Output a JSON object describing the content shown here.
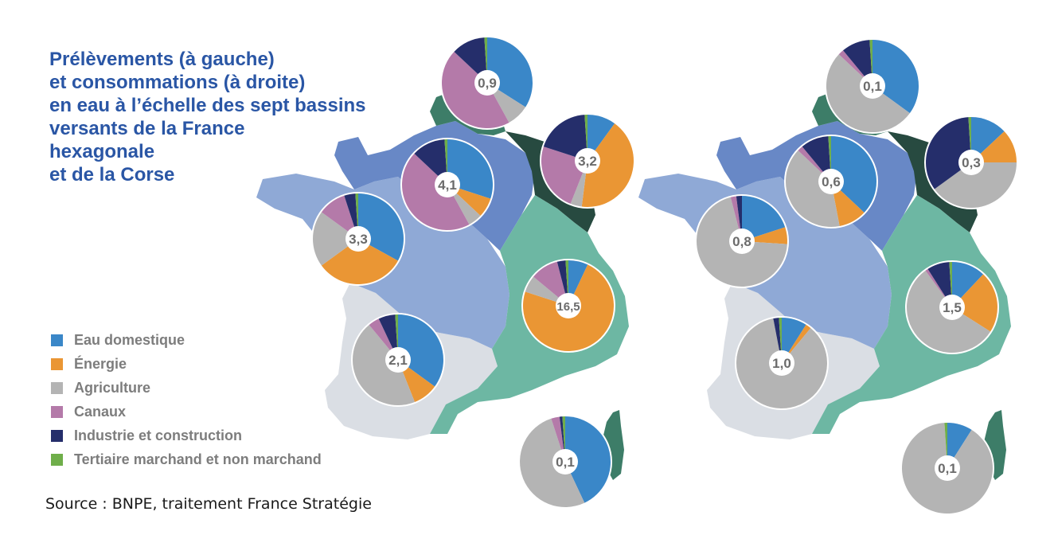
{
  "title_lines": [
    "Prélèvements (à gauche)",
    "et consommations (à droite)",
    "en eau à l’échelle des sept bassins",
    "versants de la France",
    "hexagonale",
    "et de la Corse"
  ],
  "source": "Source : BNPE, traitement France Stratégie",
  "colors": {
    "eau_domestique": "#3a87c8",
    "energie": "#ea9634",
    "agriculture": "#b4b4b4",
    "canaux": "#b47aa9",
    "industrie": "#252e6b",
    "tertiaire": "#6fae4a",
    "basin_artois_picardie": "#3d7d68",
    "basin_rhin_meuse": "#274a40",
    "basin_seine_normandie": "#6888c6",
    "basin_loire_bretagne": "#8fa9d6",
    "basin_rhone_med": "#6db7a3",
    "basin_adour_garonne": "#dadee4",
    "basin_corse": "#3d7d68"
  },
  "legend": [
    {
      "key": "eau_domestique",
      "label": "Eau domestique",
      "color": "#3a87c8"
    },
    {
      "key": "energie",
      "label": "Énergie",
      "color": "#ea9634"
    },
    {
      "key": "agriculture",
      "label": "Agriculture",
      "color": "#b4b4b4"
    },
    {
      "key": "canaux",
      "label": "Canaux",
      "color": "#b47aa9"
    },
    {
      "key": "industrie",
      "label": "Industrie et construction",
      "color": "#252e6b"
    },
    {
      "key": "tertiaire",
      "label": "Tertiaire marchand et non marchand",
      "color": "#6fae4a"
    }
  ],
  "chart_data": [
    {
      "type": "pie",
      "map": "prelevements",
      "category_order": [
        "Eau domestique",
        "Énergie",
        "Agriculture",
        "Canaux",
        "Industrie et construction",
        "Tertiaire marchand et non marchand"
      ],
      "pies": [
        {
          "basin": "Artois-Picardie",
          "label": "0,9",
          "shares": [
            0.34,
            0.0,
            0.08,
            0.45,
            0.12,
            0.01
          ]
        },
        {
          "basin": "Seine-Normandie",
          "label": "4,1",
          "shares": [
            0.3,
            0.07,
            0.05,
            0.45,
            0.12,
            0.01
          ]
        },
        {
          "basin": "Rhin-Meuse",
          "label": "3,2",
          "shares": [
            0.1,
            0.42,
            0.04,
            0.24,
            0.19,
            0.01
          ]
        },
        {
          "basin": "Loire-Bretagne",
          "label": "3,3",
          "shares": [
            0.33,
            0.32,
            0.2,
            0.1,
            0.04,
            0.01
          ]
        },
        {
          "basin": "Rhône-Méditerranée",
          "label": "16,5",
          "shares": [
            0.07,
            0.73,
            0.06,
            0.1,
            0.03,
            0.01
          ]
        },
        {
          "basin": "Adour-Garonne",
          "label": "2,1",
          "shares": [
            0.35,
            0.09,
            0.45,
            0.04,
            0.06,
            0.01
          ]
        },
        {
          "basin": "Corse",
          "label": "0,1",
          "shares": [
            0.43,
            0.0,
            0.52,
            0.03,
            0.01,
            0.01
          ]
        }
      ]
    },
    {
      "type": "pie",
      "map": "consommations",
      "category_order": [
        "Eau domestique",
        "Énergie",
        "Agriculture",
        "Canaux",
        "Industrie et construction",
        "Tertiaire marchand et non marchand"
      ],
      "pies": [
        {
          "basin": "Artois-Picardie",
          "label": "0,1",
          "shares": [
            0.35,
            0.0,
            0.52,
            0.02,
            0.1,
            0.01
          ]
        },
        {
          "basin": "Seine-Normandie",
          "label": "0,6",
          "shares": [
            0.37,
            0.1,
            0.4,
            0.02,
            0.1,
            0.01
          ]
        },
        {
          "basin": "Rhin-Meuse",
          "label": "0,3",
          "shares": [
            0.13,
            0.12,
            0.4,
            0.0,
            0.34,
            0.01
          ]
        },
        {
          "basin": "Loire-Bretagne",
          "label": "0,8",
          "shares": [
            0.2,
            0.06,
            0.7,
            0.02,
            0.02,
            0.0
          ]
        },
        {
          "basin": "Rhône-Méditerranée",
          "label": "1,5",
          "shares": [
            0.12,
            0.22,
            0.56,
            0.01,
            0.08,
            0.01
          ]
        },
        {
          "basin": "Adour-Garonne",
          "label": "1,0",
          "shares": [
            0.09,
            0.02,
            0.86,
            0.0,
            0.02,
            0.01
          ]
        },
        {
          "basin": "Corse",
          "label": "0,1",
          "shares": [
            0.09,
            0.0,
            0.9,
            0.0,
            0.0,
            0.01
          ]
        }
      ]
    }
  ]
}
